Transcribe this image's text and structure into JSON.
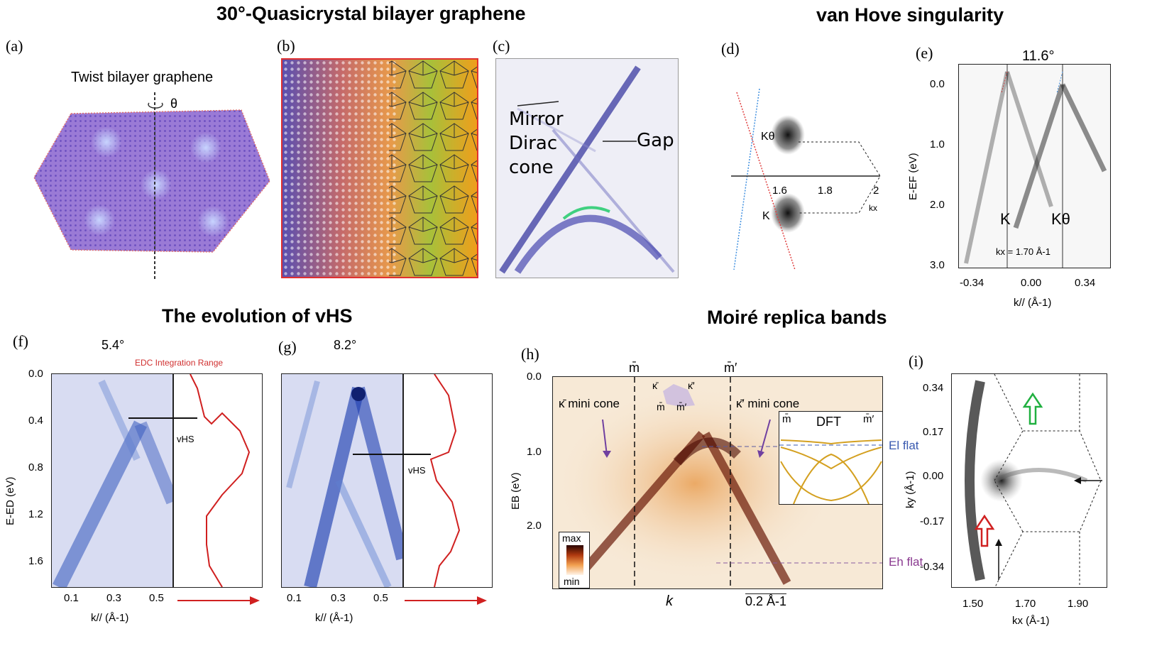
{
  "sections": {
    "quasicrystal": "30°-Quasicrystal bilayer graphene",
    "vhs": "van Hove singularity",
    "evolution": "The evolution of vHS",
    "moire": "Moiré replica bands"
  },
  "panel_labels": [
    "(a)",
    "(b)",
    "(c)",
    "(d)",
    "(e)",
    "(f)",
    "(g)",
    "(h)",
    "(i)"
  ],
  "panel_a": {
    "title": "Twist bilayer graphene",
    "theta": "θ"
  },
  "panel_c": {
    "mirror1": "Mirror",
    "mirror2": "Dirac",
    "mirror3": "cone",
    "gap": "Gap"
  },
  "panel_d": {
    "k_theta": "Kθ",
    "k": "K",
    "ticks": [
      "1.6",
      "1.8",
      "2"
    ],
    "kx": "kx"
  },
  "panel_e": {
    "angle": "11.6°",
    "yticks": [
      "0.0",
      "1.0",
      "2.0",
      "3.0"
    ],
    "xticks": [
      "-0.34",
      "0.00",
      "0.34"
    ],
    "ylabel": "E-EF (eV)",
    "xlabel": "k// (Å-1)",
    "k": "K",
    "k_theta": "Kθ",
    "kx_note": "kx = 1.70 Å-1"
  },
  "panel_f": {
    "angle": "5.4°",
    "edc": "EDC Integration Range",
    "yticks": [
      "0.0",
      "0.4",
      "0.8",
      "1.2",
      "1.6"
    ],
    "xticks": [
      "0.1",
      "0.3",
      "0.5"
    ],
    "ylabel": "E-ED (eV)",
    "xlabel": "k// (Å-1)",
    "vhs": "vHS"
  },
  "panel_g": {
    "angle": "8.2°",
    "xticks": [
      "0.1",
      "0.3",
      "0.5"
    ],
    "xlabel": "k// (Å-1)",
    "vhs": "vHS"
  },
  "panel_h": {
    "yticks": [
      "0.0",
      "1.0",
      "2.0"
    ],
    "ylabel": "EB (eV)",
    "xlabel": "k",
    "m_top": "m̄",
    "m_prime_top": "m̄′",
    "k_mini": "κ̄ mini cone",
    "k_prime_mini": "κ̄′ mini cone",
    "inset_k": "κ̄",
    "inset_kp": "κ̄′",
    "inset_m": "m̄",
    "inset_mp": "m̄′",
    "dft": "DFT",
    "dft_m": "m̄",
    "dft_mp": "m̄′",
    "el": "El flat",
    "eh": "Eh flat",
    "cbar_max": "max",
    "cbar_min": "min",
    "scale": "0.2 Å-1"
  },
  "panel_i": {
    "yticks": [
      "0.34",
      "0.17",
      "0.00",
      "-0.17",
      "-0.34"
    ],
    "xticks": [
      "1.50",
      "1.70",
      "1.90"
    ],
    "ylabel": "ky (Å-1)",
    "xlabel": "kx (Å-1)"
  }
}
